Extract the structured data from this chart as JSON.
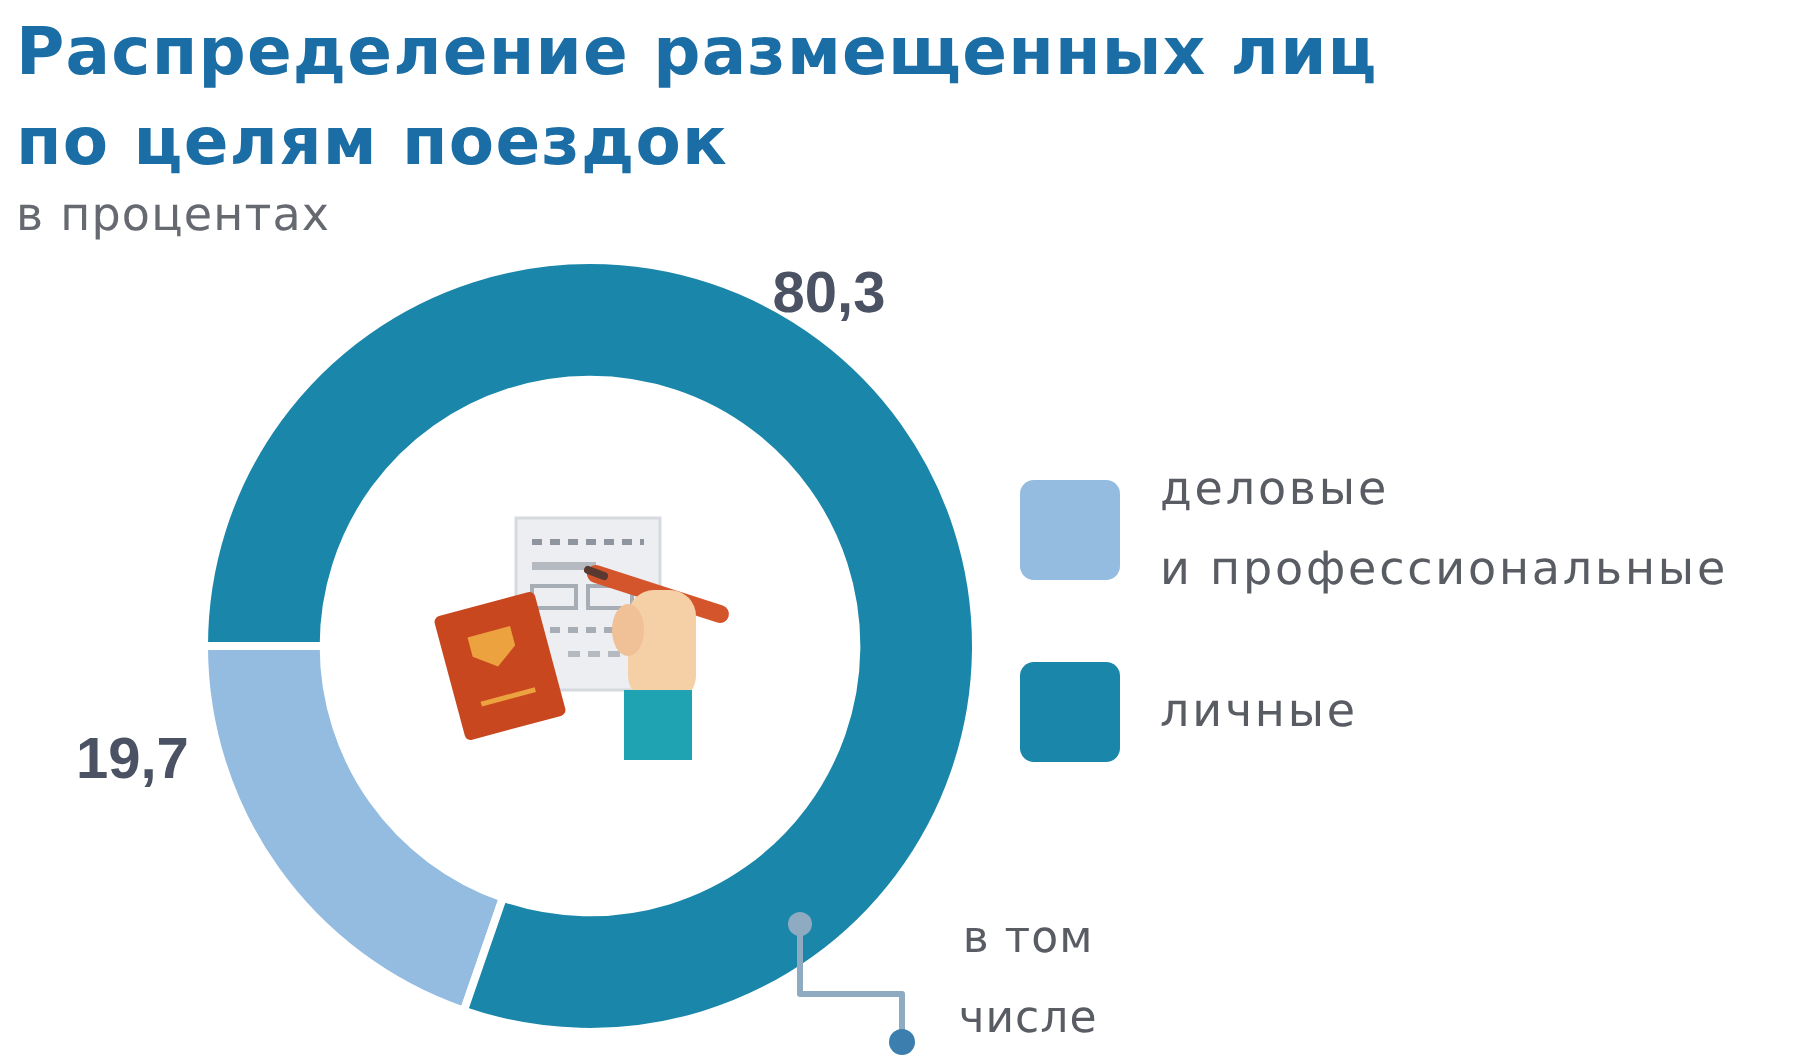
{
  "chart_data": {
    "type": "donut",
    "title": "Распределение размещенных лиц по целям поездок",
    "subtitle": "в процентах",
    "categories": [
      "деловые\nи профессиональные",
      "личные"
    ],
    "values": [
      19.7,
      80.3
    ],
    "colors": [
      "#93bce0",
      "#1a86a9"
    ],
    "value_labels": [
      "19,7",
      "80,3"
    ],
    "legend": "right",
    "annotations": [
      "в том числе"
    ]
  }
}
